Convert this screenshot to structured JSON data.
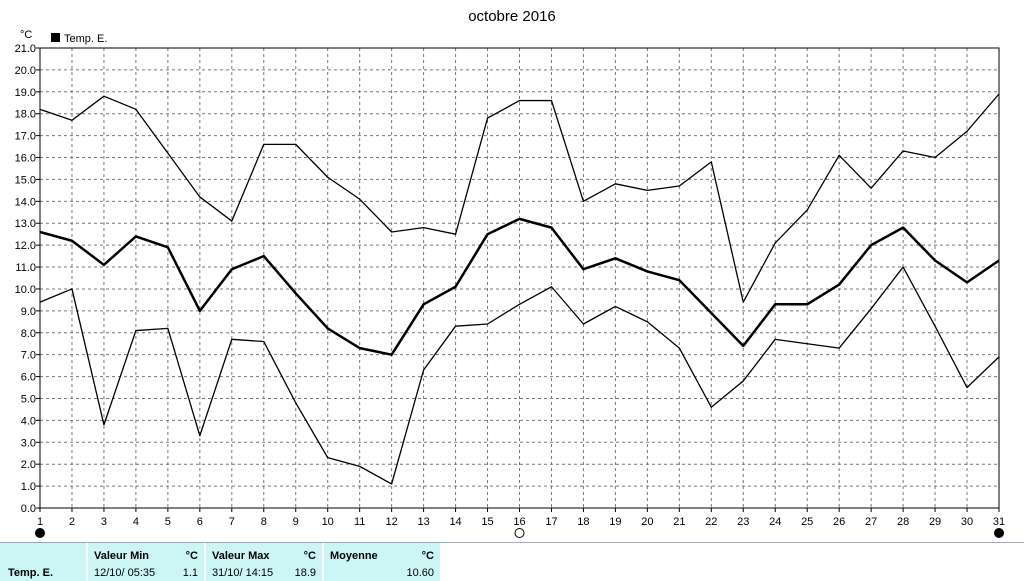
{
  "chart_data": {
    "type": "line",
    "title": "octobre 2016",
    "ylabel": "°C",
    "ylim": [
      0,
      21
    ],
    "yticks": [
      "0.0",
      "1.0",
      "2.0",
      "3.0",
      "4.0",
      "5.0",
      "6.0",
      "7.0",
      "8.0",
      "9.0",
      "10.0",
      "11.0",
      "12.0",
      "13.0",
      "14.0",
      "15.0",
      "16.0",
      "17.0",
      "18.0",
      "19.0",
      "20.0",
      "21.0"
    ],
    "x": [
      1,
      2,
      3,
      4,
      5,
      6,
      7,
      8,
      9,
      10,
      11,
      12,
      13,
      14,
      15,
      16,
      17,
      18,
      19,
      20,
      21,
      22,
      23,
      24,
      25,
      26,
      27,
      28,
      29,
      30,
      31
    ],
    "grid": true,
    "legend": {
      "position": "top-left",
      "entries": [
        "Temp. E."
      ]
    },
    "series": [
      {
        "role": "max",
        "values": [
          18.2,
          17.7,
          18.8,
          18.2,
          16.2,
          14.2,
          13.1,
          16.6,
          16.6,
          15.1,
          14.1,
          12.6,
          12.8,
          12.5,
          17.8,
          18.6,
          18.6,
          14.0,
          14.8,
          14.5,
          14.7,
          15.8,
          9.4,
          12.1,
          13.6,
          16.1,
          14.6,
          16.3,
          16.0,
          17.2,
          18.9
        ]
      },
      {
        "role": "mean",
        "name": "Temp. E.",
        "values": [
          12.6,
          12.2,
          11.1,
          12.4,
          11.9,
          9.0,
          10.9,
          11.5,
          9.8,
          8.2,
          7.3,
          7.0,
          9.3,
          10.1,
          12.5,
          13.2,
          12.8,
          10.9,
          11.4,
          10.8,
          10.4,
          8.9,
          7.4,
          9.3,
          9.3,
          10.2,
          12.0,
          12.8,
          11.3,
          10.3,
          11.3
        ]
      },
      {
        "role": "min",
        "values": [
          9.4,
          10.0,
          3.8,
          8.1,
          8.2,
          3.3,
          7.7,
          7.6,
          4.8,
          2.3,
          1.9,
          1.1,
          6.3,
          8.3,
          8.4,
          9.3,
          10.1,
          8.4,
          9.2,
          8.5,
          7.3,
          4.6,
          5.8,
          7.7,
          7.5,
          7.3,
          9.1,
          11.0,
          8.3,
          5.5,
          6.9
        ]
      }
    ],
    "moon_markers": [
      {
        "day": 1,
        "phase": "new"
      },
      {
        "day": 16,
        "phase": "full"
      },
      {
        "day": 31,
        "phase": "new"
      }
    ]
  },
  "stats": {
    "row_label": "Temp. E.",
    "min": {
      "header": "Valeur Min",
      "unit": "°C",
      "time": "12/10/  05:35",
      "value": "1.1"
    },
    "max": {
      "header": "Valeur Max",
      "unit": "°C",
      "time": "31/10/  14:15",
      "value": "18.9"
    },
    "avg": {
      "header": "Moyenne",
      "unit": "°C",
      "value": "10.60"
    }
  }
}
